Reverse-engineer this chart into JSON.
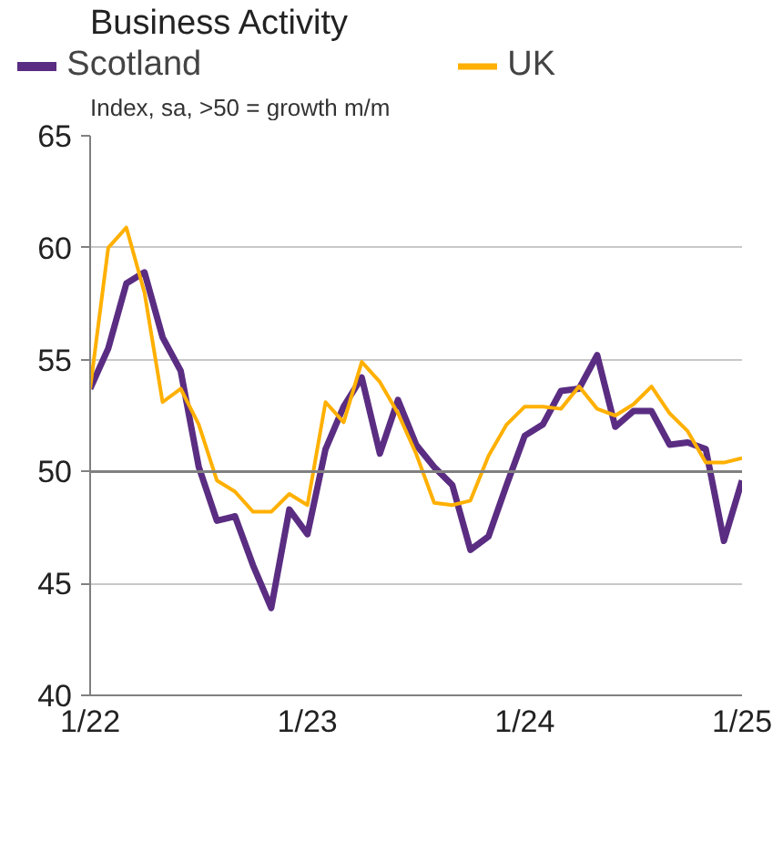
{
  "chart_data": {
    "type": "line",
    "title": "Business Activity",
    "subtitle": "Index, sa, >50 = growth m/m",
    "categories": [
      "1/22",
      null,
      null,
      null,
      null,
      null,
      null,
      null,
      null,
      null,
      null,
      null,
      "1/23",
      null,
      null,
      null,
      null,
      null,
      null,
      null,
      null,
      null,
      null,
      null,
      "1/24",
      null,
      null,
      null,
      null,
      null,
      null,
      null,
      null,
      null,
      null,
      null,
      "1/25"
    ],
    "series": [
      {
        "name": "Scotland",
        "color": "#5a2d82",
        "values": [
          53.7,
          55.5,
          58.4,
          58.9,
          56.0,
          54.5,
          50.2,
          47.8,
          48.0,
          45.8,
          43.9,
          48.3,
          47.2,
          51.0,
          52.9,
          54.2,
          50.8,
          53.2,
          51.2,
          50.2,
          49.4,
          46.5,
          47.1,
          49.4,
          51.6,
          52.1,
          53.6,
          53.7,
          55.2,
          52.0,
          52.7,
          52.7,
          51.2,
          51.3,
          51.0,
          46.9,
          49.6
        ]
      },
      {
        "name": "UK",
        "color": "#ffb000",
        "values": [
          53.7,
          60.0,
          60.9,
          58.0,
          53.1,
          53.7,
          52.1,
          49.6,
          49.1,
          48.2,
          48.2,
          49.0,
          48.5,
          53.1,
          52.2,
          54.9,
          54.0,
          52.6,
          50.8,
          48.6,
          48.5,
          48.7,
          50.7,
          52.1,
          52.9,
          52.9,
          52.8,
          53.8,
          52.8,
          52.5,
          53.0,
          53.8,
          52.6,
          51.8,
          50.4,
          50.4,
          50.6
        ]
      }
    ],
    "ylim": [
      40,
      65
    ],
    "yticks": [
      40,
      45,
      50,
      55,
      60,
      65
    ],
    "ref_lines": [
      {
        "axis": "y",
        "value": 50,
        "color": "#808080"
      }
    ],
    "grid": "y",
    "legend": "top",
    "marker": "none",
    "line_style": "solid"
  }
}
